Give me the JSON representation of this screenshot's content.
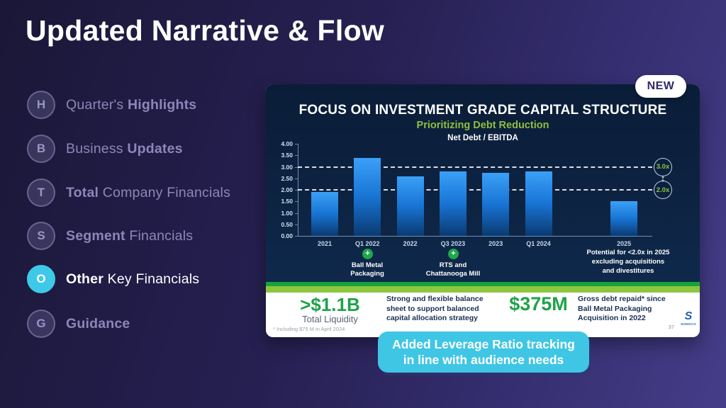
{
  "page": {
    "title": "Updated Narrative & Flow"
  },
  "sidebar": {
    "items": [
      {
        "letter": "H",
        "pre": "Quarter's ",
        "bold": "Highlights",
        "post": "",
        "active": false
      },
      {
        "letter": "B",
        "pre": "Business ",
        "bold": "Updates",
        "post": "",
        "active": false
      },
      {
        "letter": "T",
        "pre": "",
        "bold": "Total",
        "post": " Company Financials",
        "active": false
      },
      {
        "letter": "S",
        "pre": "",
        "bold": "Segment",
        "post": " Financials",
        "active": false
      },
      {
        "letter": "O",
        "pre": "",
        "bold": "Other",
        "post": " Key Financials",
        "active": true
      },
      {
        "letter": "G",
        "pre": "",
        "bold": "Guidance",
        "post": "",
        "active": false
      }
    ]
  },
  "badge": {
    "label": "NEW"
  },
  "slide": {
    "title": "FOCUS ON INVESTMENT GRADE CAPITAL STRUCTURE",
    "subtitle": "Prioritizing Debt Reduction",
    "chart_label": "Net Debt / EBITDA",
    "markers": [
      {
        "label": "3.0x",
        "value": 3.0
      },
      {
        "label": "2.0x",
        "value": 2.0
      }
    ],
    "marker_arrow": "↕",
    "plus_symbol": "+",
    "annotations": {
      "q1_2022": "Ball Metal\nPackaging",
      "q3_2023": "RTS and\nChattanooga Mill",
      "right": "Potential for <2.0x in 2025\nexcluding acquisitions\nand divestitures"
    },
    "stats": [
      {
        "value": ">$1.1B",
        "label": "Total Liquidity",
        "desc": "Strong and flexible balance\nsheet to support balanced\ncapital allocation strategy"
      },
      {
        "value": "$375M",
        "label": "",
        "desc": "Gross debt repaid* since\nBall Metal Packaging\nAcquisition in 2022"
      }
    ],
    "footnote": "* Including $75 M in April 2024",
    "page_number": "37",
    "logo": {
      "mark": "S",
      "name": "SONOCO"
    }
  },
  "callout": {
    "text": "Added Leverage Ratio tracking\nin line with audience needs"
  },
  "chart_data": {
    "type": "bar",
    "title": "Net Debt / EBITDA",
    "categories": [
      "2021",
      "Q1 2022",
      "2022",
      "Q3 2023",
      "2023",
      "Q1 2024",
      "2025"
    ],
    "values": [
      1.9,
      3.4,
      2.6,
      2.8,
      2.75,
      2.8,
      1.5
    ],
    "xlabel": "",
    "ylabel": "",
    "ylim": [
      0,
      4
    ],
    "ytick_step": 0.5,
    "grid": false,
    "legend": false,
    "reference_lines": [
      3.0,
      2.0
    ],
    "slot_of_category": [
      0,
      1,
      2,
      3,
      4,
      5,
      7
    ],
    "total_slots": 8,
    "bar_color_top": "#3ba0f7",
    "bar_color_bottom": "#0a3a72",
    "background": "#0d2342",
    "accent_green": "#8dc63f"
  }
}
